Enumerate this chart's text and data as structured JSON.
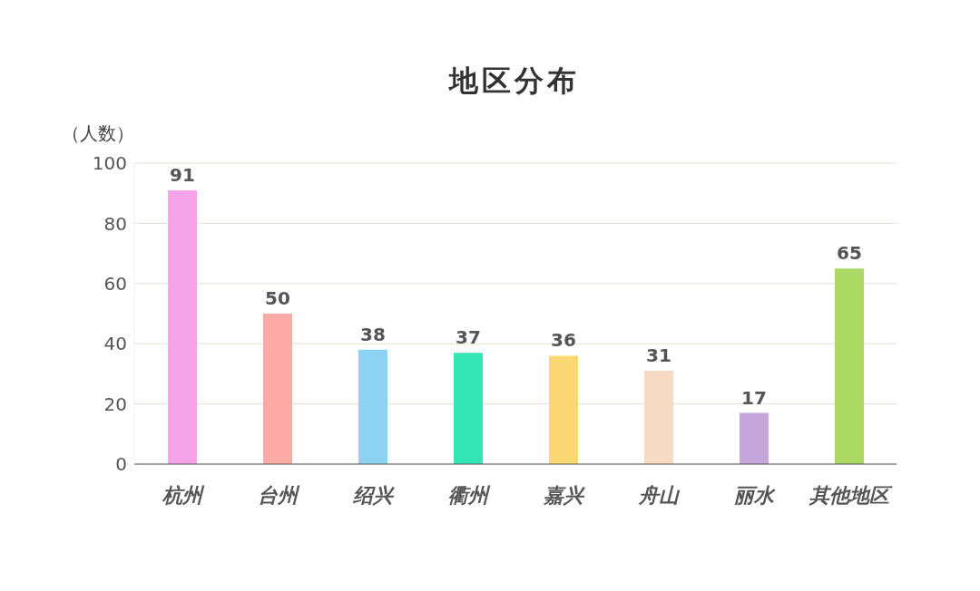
{
  "chart_data": {
    "type": "bar",
    "title": "地区分布",
    "ylabel": "（人数）",
    "categories": [
      "杭州",
      "台州",
      "绍兴",
      "衢州",
      "嘉兴",
      "舟山",
      "丽水",
      "其他地区"
    ],
    "values": [
      91,
      50,
      38,
      37,
      36,
      31,
      17,
      65
    ],
    "colors": [
      "#f5a3e8",
      "#fbaaa6",
      "#8dd2f2",
      "#34e6b4",
      "#fcd874",
      "#f6dac4",
      "#c4a6da",
      "#acd964"
    ],
    "ylim": [
      0,
      100
    ],
    "yticks": [
      0,
      20,
      40,
      60,
      80,
      100
    ],
    "grid": "y",
    "data_labels": true
  }
}
